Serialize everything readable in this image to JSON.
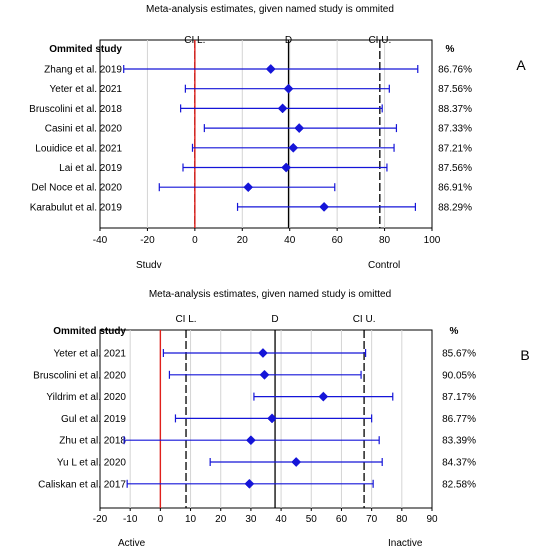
{
  "chart_data": [
    {
      "type": "forest",
      "panel_label": "A",
      "title": "Meta-analysis estimates, given named study is ommited",
      "column_header": "Ommited study",
      "percent_header": "%",
      "ref_labels": {
        "cil": "CI L.",
        "d": "D",
        "ciu": "CI U."
      },
      "ref_values": {
        "cil": 0,
        "d": 39.5,
        "ciu": 78
      },
      "xlim": [
        -40,
        100
      ],
      "xticks": [
        -40,
        -20,
        0,
        20,
        40,
        60,
        80,
        100
      ],
      "null_value": 0,
      "left_label": "Studv",
      "right_label": "Control",
      "studies": [
        {
          "name": "Zhang et al. 2019",
          "est": 32,
          "low": -30,
          "high": 94,
          "pct": "86.76%"
        },
        {
          "name": "Yeter et al. 2021",
          "est": 39.5,
          "low": -4,
          "high": 82,
          "pct": "87.56%"
        },
        {
          "name": "Bruscolini et al. 2018",
          "est": 37,
          "low": -6,
          "high": 79,
          "pct": "88.37%"
        },
        {
          "name": "Casini et al. 2020",
          "est": 44,
          "low": 4,
          "high": 85,
          "pct": "87.33%"
        },
        {
          "name": "Louidice et al. 2021",
          "est": 41.5,
          "low": -1,
          "high": 84,
          "pct": "87.21%"
        },
        {
          "name": "Lai et al. 2019",
          "est": 38.5,
          "low": -5,
          "high": 81,
          "pct": "87.56%"
        },
        {
          "name": "Del Noce et al. 2020",
          "est": 22.5,
          "low": -15,
          "high": 59,
          "pct": "86.91%"
        },
        {
          "name": "Karabulut et al. 2019",
          "est": 54.5,
          "low": 18,
          "high": 93,
          "pct": "88.29%"
        }
      ]
    },
    {
      "type": "forest",
      "panel_label": "B",
      "title": "Meta-analysis estimates, given named study is omitted",
      "column_header": "Ommited study",
      "percent_header": "%",
      "ref_labels": {
        "cil": "CI L.",
        "d": "D",
        "ciu": "CI U."
      },
      "ref_values": {
        "cil": 8.5,
        "d": 38,
        "ciu": 67.5
      },
      "xlim": [
        -20,
        90
      ],
      "xticks": [
        -20,
        -10,
        0,
        10,
        20,
        30,
        40,
        50,
        60,
        70,
        80,
        90
      ],
      "null_value": 0,
      "left_label": "Active",
      "right_label": "Inactive",
      "studies": [
        {
          "name": "Yeter et al. 2021",
          "est": 34,
          "low": 1,
          "high": 68,
          "pct": "85.67%"
        },
        {
          "name": "Bruscolini et al. 2020",
          "est": 34.5,
          "low": 3,
          "high": 66.5,
          "pct": "90.05%"
        },
        {
          "name": "Yildrim et al. 2020",
          "est": 54,
          "low": 31,
          "high": 77,
          "pct": "87.17%"
        },
        {
          "name": "Gul et al. 2019",
          "est": 37,
          "low": 5,
          "high": 70,
          "pct": "86.77%"
        },
        {
          "name": "Zhu et al. 2018",
          "est": 30,
          "low": -12,
          "high": 72.5,
          "pct": "83.39%"
        },
        {
          "name": "Yu L et al. 2020",
          "est": 45,
          "low": 16.5,
          "high": 73.5,
          "pct": "84.37%"
        },
        {
          "name": "Caliskan et al. 2017",
          "est": 29.5,
          "low": -11,
          "high": 70.5,
          "pct": "82.58%"
        }
      ]
    }
  ]
}
